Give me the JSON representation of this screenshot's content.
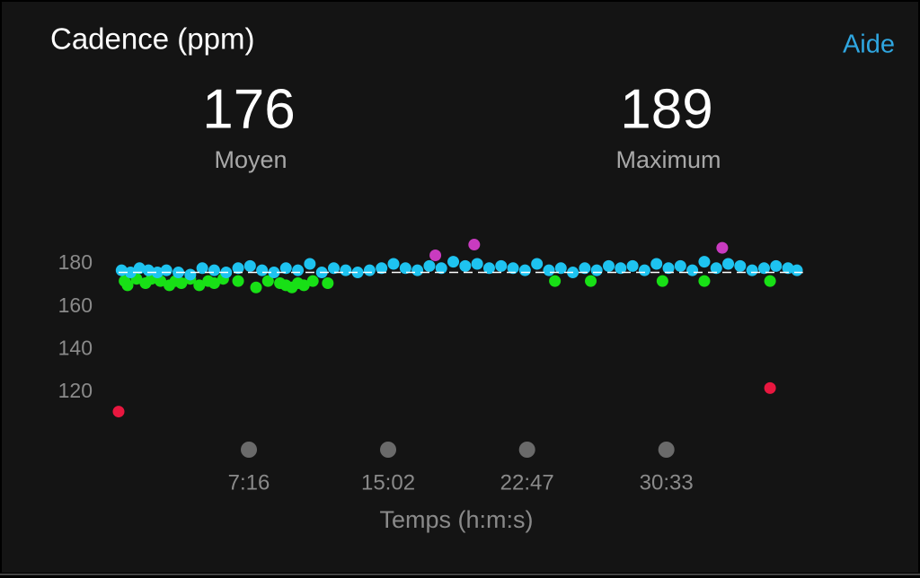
{
  "header": {
    "title": "Cadence (ppm)",
    "help": "Aide"
  },
  "stats": [
    {
      "value": 176,
      "label": "Moyen"
    },
    {
      "value": 189,
      "label": "Maximum"
    }
  ],
  "chart_data": {
    "type": "scatter",
    "x_label": "Temps (h:m:s)",
    "xlim": [
      0,
      2290
    ],
    "xticks": [
      {
        "value": 436,
        "label": "7:16"
      },
      {
        "value": 902,
        "label": "15:02"
      },
      {
        "value": 1367,
        "label": "22:47"
      },
      {
        "value": 1833,
        "label": "30:33"
      }
    ],
    "ylim": [
      106,
      192
    ],
    "yticks": [
      120,
      140,
      160,
      180
    ],
    "series": [
      {
        "color": "#e8173f",
        "x": [
          0,
          2180
        ],
        "values": [
          111,
          122
        ]
      },
      {
        "color": "#18e016",
        "x": [
          20,
          30,
          60,
          90,
          110,
          140,
          170,
          190,
          210,
          240,
          270,
          300,
          320,
          350,
          400,
          460,
          500,
          540,
          560,
          580,
          600,
          620,
          650,
          700,
          1460,
          1580,
          1820,
          1960,
          2180
        ],
        "values": [
          172,
          170,
          173,
          171,
          173,
          172,
          170,
          172,
          171,
          173,
          170,
          172,
          171,
          173,
          172,
          169,
          172,
          171,
          170,
          169,
          171,
          170,
          172,
          171,
          172,
          172,
          172,
          172,
          172
        ]
      },
      {
        "color": "#1ec3f0",
        "x": [
          10,
          40,
          70,
          100,
          130,
          160,
          200,
          240,
          280,
          320,
          360,
          400,
          440,
          480,
          520,
          560,
          600,
          640,
          680,
          720,
          760,
          800,
          840,
          880,
          920,
          960,
          1000,
          1040,
          1080,
          1120,
          1160,
          1200,
          1240,
          1280,
          1320,
          1360,
          1400,
          1440,
          1480,
          1520,
          1560,
          1600,
          1640,
          1680,
          1720,
          1760,
          1800,
          1840,
          1880,
          1920,
          1960,
          2000,
          2040,
          2080,
          2120,
          2160,
          2200,
          2240,
          2270
        ],
        "values": [
          177,
          176,
          178,
          177,
          176,
          177,
          176,
          175,
          178,
          177,
          176,
          178,
          179,
          177,
          176,
          178,
          177,
          180,
          176,
          178,
          177,
          176,
          177,
          178,
          180,
          178,
          177,
          179,
          178,
          181,
          179,
          180,
          178,
          179,
          178,
          177,
          180,
          177,
          178,
          176,
          178,
          177,
          179,
          178,
          179,
          177,
          180,
          178,
          179,
          177,
          181,
          178,
          180,
          179,
          177,
          178,
          179,
          178,
          177
        ]
      },
      {
        "color": "#c93bc0",
        "x": [
          1060,
          1190,
          2020
        ],
        "values": [
          184,
          189,
          187.5
        ]
      }
    ]
  }
}
